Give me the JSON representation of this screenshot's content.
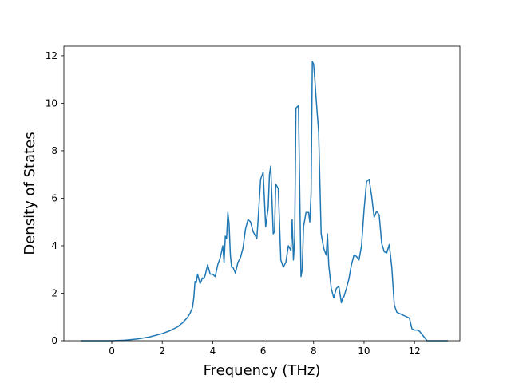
{
  "chart_data": {
    "type": "line",
    "title": "",
    "xlabel": "Frequency (THz)",
    "ylabel": "Density of States",
    "xlim": [
      -1.9,
      13.8
    ],
    "ylim": [
      0,
      12.4
    ],
    "xticks": [
      0,
      2,
      4,
      6,
      8,
      10,
      12
    ],
    "yticks": [
      0,
      2,
      4,
      6,
      8,
      10,
      12
    ],
    "xtick_labels": [
      "0",
      "2",
      "4",
      "6",
      "8",
      "10",
      "12"
    ],
    "ytick_labels": [
      "0",
      "2",
      "4",
      "6",
      "8",
      "10",
      "12"
    ],
    "grid": false,
    "legend": "none",
    "series": [
      {
        "color": "#1f77b4",
        "x": [
          -1.2,
          -0.5,
          0.0,
          0.5,
          1.0,
          1.5,
          2.0,
          2.3,
          2.6,
          2.8,
          3.0,
          3.1,
          3.2,
          3.25,
          3.3,
          3.35,
          3.4,
          3.5,
          3.6,
          3.65,
          3.7,
          3.8,
          3.9,
          4.0,
          4.1,
          4.2,
          4.3,
          4.4,
          4.45,
          4.5,
          4.55,
          4.6,
          4.65,
          4.7,
          4.75,
          4.8,
          4.9,
          5.0,
          5.1,
          5.2,
          5.3,
          5.4,
          5.5,
          5.6,
          5.7,
          5.75,
          5.8,
          5.9,
          6.0,
          6.1,
          6.2,
          6.25,
          6.3,
          6.4,
          6.45,
          6.5,
          6.6,
          6.7,
          6.8,
          6.9,
          7.0,
          7.1,
          7.15,
          7.2,
          7.25,
          7.3,
          7.4,
          7.5,
          7.55,
          7.6,
          7.7,
          7.8,
          7.85,
          7.9,
          7.95,
          8.0,
          8.05,
          8.1,
          8.2,
          8.3,
          8.4,
          8.5,
          8.55,
          8.6,
          8.7,
          8.8,
          8.9,
          9.0,
          9.1,
          9.15,
          9.2,
          9.3,
          9.4,
          9.5,
          9.6,
          9.7,
          9.8,
          9.9,
          10.0,
          10.1,
          10.2,
          10.3,
          10.4,
          10.5,
          10.6,
          10.7,
          10.8,
          10.9,
          11.0,
          11.1,
          11.2,
          11.3,
          11.4,
          11.5,
          11.6,
          11.7,
          11.8,
          11.9,
          12.0,
          12.1,
          12.2,
          12.5,
          13.3
        ],
        "values": [
          0.0,
          0.0,
          0.0,
          0.02,
          0.07,
          0.16,
          0.3,
          0.42,
          0.58,
          0.75,
          0.98,
          1.15,
          1.4,
          1.8,
          2.5,
          2.45,
          2.8,
          2.4,
          2.65,
          2.6,
          2.75,
          3.2,
          2.8,
          2.8,
          2.7,
          3.2,
          3.5,
          4.0,
          3.3,
          4.4,
          4.3,
          5.4,
          4.9,
          3.6,
          3.1,
          3.1,
          2.85,
          3.3,
          3.5,
          3.9,
          4.7,
          5.1,
          5.0,
          4.6,
          4.4,
          4.3,
          5.1,
          6.8,
          7.1,
          4.8,
          5.6,
          7.0,
          7.35,
          4.5,
          4.6,
          6.6,
          6.4,
          3.4,
          3.1,
          3.3,
          4.0,
          3.8,
          5.1,
          3.4,
          4.3,
          9.8,
          9.9,
          2.7,
          3.0,
          4.8,
          5.4,
          5.4,
          5.0,
          6.2,
          11.75,
          11.65,
          11.0,
          10.2,
          8.8,
          4.5,
          3.9,
          3.6,
          4.5,
          3.2,
          2.2,
          1.8,
          2.2,
          2.3,
          1.6,
          1.8,
          1.85,
          2.2,
          2.6,
          3.2,
          3.6,
          3.55,
          3.4,
          4.0,
          5.5,
          6.7,
          6.8,
          6.1,
          5.2,
          5.45,
          5.3,
          4.1,
          3.75,
          3.7,
          4.05,
          3.1,
          1.5,
          1.2,
          1.15,
          1.1,
          1.05,
          1.0,
          0.95,
          0.5,
          0.45,
          0.45,
          0.4,
          0.0,
          0.0
        ]
      }
    ]
  }
}
